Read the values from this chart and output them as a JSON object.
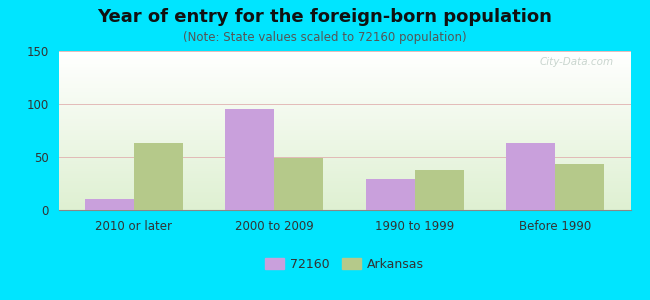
{
  "title": "Year of entry for the foreign-born population",
  "subtitle": "(Note: State values scaled to 72160 population)",
  "categories": [
    "2010 or later",
    "2000 to 2009",
    "1990 to 1999",
    "Before 1990"
  ],
  "values_72160": [
    10,
    95,
    29,
    63
  ],
  "values_arkansas": [
    63,
    49,
    38,
    43
  ],
  "color_72160": "#c9a0dc",
  "color_arkansas": "#b5c98a",
  "background_outer": "#00e5ff",
  "ylim": [
    0,
    150
  ],
  "yticks": [
    0,
    50,
    100,
    150
  ],
  "legend_label_72160": "72160",
  "legend_label_arkansas": "Arkansas",
  "bar_width": 0.35,
  "title_fontsize": 13,
  "subtitle_fontsize": 8.5,
  "tick_fontsize": 8.5,
  "legend_fontsize": 9,
  "watermark": "City-Data.com"
}
